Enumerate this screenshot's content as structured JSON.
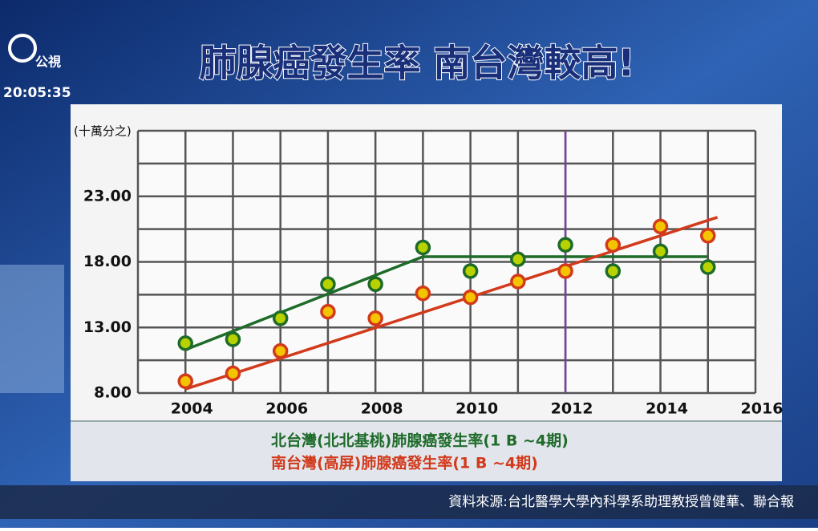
{
  "channel": {
    "logo": "公視",
    "clock": "20:05:35"
  },
  "chart_data": {
    "type": "line",
    "title": "肺腺癌發生率 南台灣較高!",
    "y_unit": "(十萬分之)",
    "xlim": [
      2003,
      2016
    ],
    "ylim": [
      8,
      28
    ],
    "xticks": [
      2004,
      2006,
      2008,
      2010,
      2012,
      2014,
      2016
    ],
    "grid_xticks": [
      2003,
      2004,
      2005,
      2006,
      2007,
      2008,
      2009,
      2010,
      2011,
      2012,
      2013,
      2014,
      2015,
      2016
    ],
    "yticks": [
      {
        "value": 8,
        "label": "8.00"
      },
      {
        "value": 13,
        "label": "13.00"
      },
      {
        "value": 18,
        "label": "18.00"
      },
      {
        "value": 23,
        "label": "23.00"
      }
    ],
    "grid_yticks": [
      8,
      10.5,
      13,
      15.5,
      18,
      20.5,
      23,
      25.5,
      28
    ],
    "grid": true,
    "highlight_x": 2012,
    "highlight_color": "#7a3fa0",
    "x": [
      2004,
      2005,
      2006,
      2007,
      2008,
      2009,
      2010,
      2011,
      2012,
      2013,
      2014,
      2015
    ],
    "series": [
      {
        "name": "北台灣(北北基桃)肺腺癌發生率(1 B ~4期)",
        "color": "#1f6b2a",
        "marker_color": "#b8d200",
        "values": [
          11.8,
          12.1,
          13.7,
          16.3,
          16.3,
          19.1,
          17.3,
          18.2,
          19.3,
          17.3,
          18.8,
          17.6
        ],
        "trend": {
          "x": [
            2004,
            2009,
            2015
          ],
          "values": [
            11.3,
            18.4,
            18.4
          ]
        }
      },
      {
        "name": "南台灣(高屏)肺腺癌發生率(1 B ~4期)",
        "color": "#d23a1c",
        "marker_color": "#f5c400",
        "values": [
          8.9,
          9.5,
          11.2,
          14.2,
          13.7,
          15.6,
          15.3,
          16.5,
          17.3,
          19.3,
          20.7,
          20.0
        ],
        "trend": {
          "x": [
            2004,
            2015.2
          ],
          "values": [
            8.3,
            21.4
          ]
        }
      }
    ],
    "source": "資料來源:台北醫學大學內科學系助理教授曾健華、聯合報"
  }
}
